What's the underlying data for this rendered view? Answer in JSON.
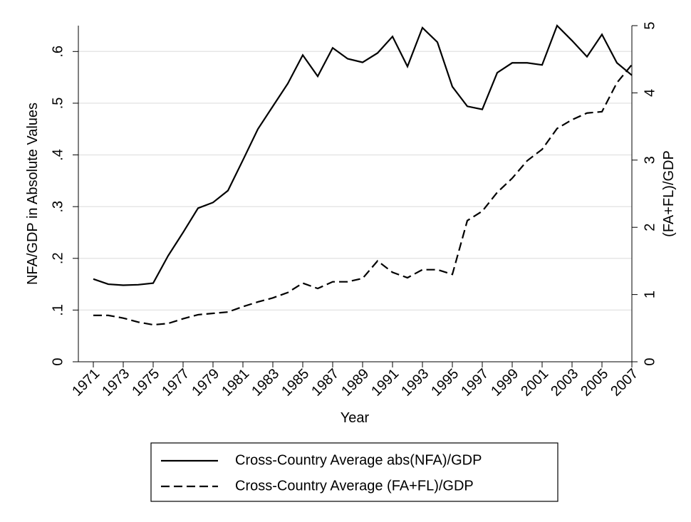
{
  "chart_data": {
    "type": "line",
    "x_label": "Year",
    "y_label": "NFA/GDP in Absolute Values",
    "y2_label": "(FA+FL)/GDP",
    "x": [
      1971,
      1972,
      1973,
      1974,
      1975,
      1976,
      1977,
      1978,
      1979,
      1980,
      1981,
      1982,
      1983,
      1984,
      1985,
      1986,
      1987,
      1988,
      1989,
      1990,
      1991,
      1992,
      1993,
      1994,
      1995,
      1996,
      1997,
      1998,
      1999,
      2000,
      2001,
      2002,
      2003,
      2004,
      2005,
      2006,
      2007
    ],
    "xlim": [
      1970,
      2007
    ],
    "xticks": [
      1971,
      1973,
      1975,
      1977,
      1979,
      1981,
      1983,
      1985,
      1987,
      1989,
      1991,
      1993,
      1995,
      1997,
      1999,
      2001,
      2003,
      2005,
      2007
    ],
    "ylim": [
      0,
      0.65
    ],
    "yticks": [
      0,
      {
        "value": 0.1,
        "label": ".1"
      },
      {
        "value": 0.2,
        "label": ".2"
      },
      {
        "value": 0.3,
        "label": ".3"
      },
      {
        "value": 0.4,
        "label": ".4"
      },
      {
        "value": 0.5,
        "label": ".5"
      },
      {
        "value": 0.6,
        "label": ".6"
      }
    ],
    "y2lim": [
      0,
      5
    ],
    "y2ticks": [
      0,
      1,
      2,
      3,
      4,
      5
    ],
    "grid": true,
    "series": [
      {
        "name": "Cross-Country Average abs(NFA)/GDP",
        "color": "#000000",
        "dash": "solid",
        "axis": "y",
        "values": [
          0.16,
          0.15,
          0.148,
          0.149,
          0.152,
          0.205,
          0.25,
          0.297,
          0.308,
          0.331,
          0.39,
          0.45,
          0.494,
          0.538,
          0.593,
          0.552,
          0.607,
          0.586,
          0.579,
          0.597,
          0.629,
          0.571,
          0.646,
          0.618,
          0.532,
          0.494,
          0.488,
          0.559,
          0.578,
          0.578,
          0.574,
          0.65,
          0.621,
          0.59,
          0.633,
          0.578,
          0.554
        ]
      },
      {
        "name": "Cross-Country Average (FA+FL)/GDP",
        "color": "#000000",
        "dash": "dashed",
        "axis": "y2",
        "values": [
          0.69,
          0.69,
          0.65,
          0.59,
          0.55,
          0.57,
          0.64,
          0.7,
          0.72,
          0.74,
          0.82,
          0.89,
          0.95,
          1.03,
          1.17,
          1.09,
          1.19,
          1.19,
          1.24,
          1.5,
          1.33,
          1.25,
          1.37,
          1.37,
          1.3,
          2.1,
          2.24,
          2.52,
          2.73,
          2.99,
          3.16,
          3.47,
          3.6,
          3.7,
          3.72,
          4.15,
          4.42
        ]
      }
    ]
  }
}
